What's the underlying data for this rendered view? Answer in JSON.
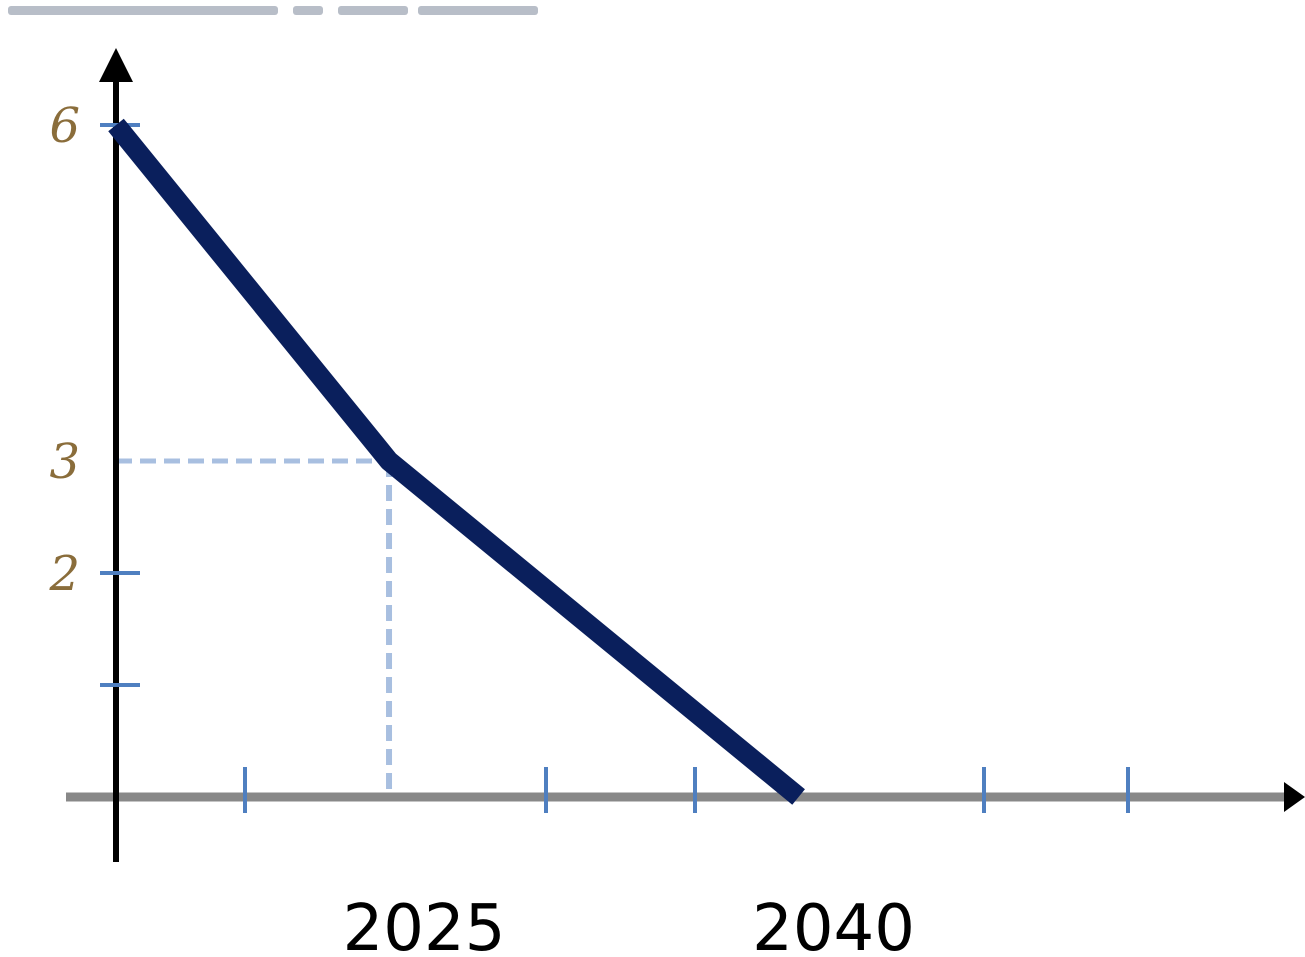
{
  "chart_data": {
    "type": "line",
    "series": [
      {
        "x": [
          2015,
          2025,
          2040
        ],
        "y": [
          6,
          3,
          0
        ],
        "color": "#0a1f5c"
      }
    ],
    "x_tick_labels": [
      {
        "value": 2025,
        "label": "2025"
      },
      {
        "value": 2040,
        "label": "2040"
      }
    ],
    "y_tick_labels": [
      {
        "value": 6,
        "label": "6"
      },
      {
        "value": 3,
        "label": "3"
      },
      {
        "value": 2,
        "label": "2"
      }
    ],
    "guides": {
      "x": 2025,
      "y": 3
    },
    "xlim": [
      2015,
      2058
    ],
    "ylim": [
      0,
      6
    ],
    "grid": false,
    "title": "",
    "xlabel": "",
    "ylabel": "",
    "colors": {
      "line": "#0a1f5c",
      "axis_y": "#000000",
      "axis_x": "#888888",
      "tick": "#4f7fc0",
      "guide": "#a8bfe0"
    }
  }
}
